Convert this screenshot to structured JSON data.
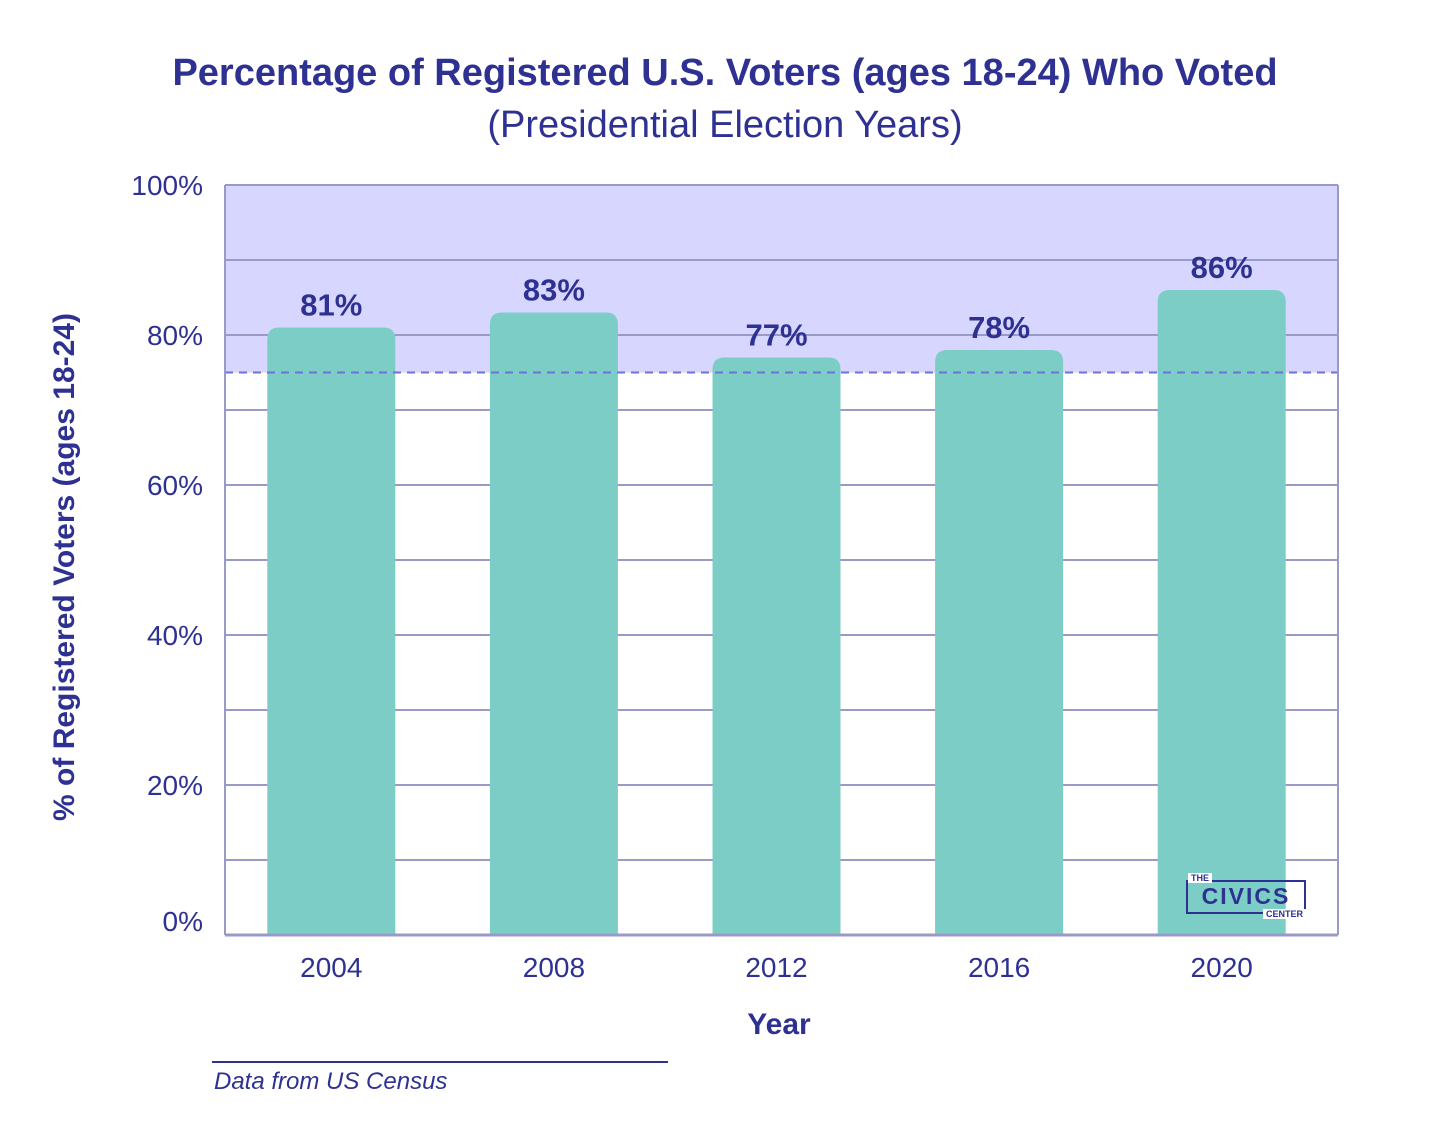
{
  "chart_data": {
    "type": "bar",
    "title": "Percentage of Registered U.S. Voters (ages 18-24) Who Voted",
    "subtitle": "(Presidential Election Years)",
    "xlabel": "Year",
    "ylabel": "% of Registered Voters (ages 18-24)",
    "categories": [
      "2004",
      "2008",
      "2012",
      "2016",
      "2020"
    ],
    "values": [
      81,
      83,
      77,
      78,
      86
    ],
    "data_labels": [
      "81%",
      "83%",
      "77%",
      "78%",
      "86%"
    ],
    "ylim": [
      0,
      100
    ],
    "yticks": [
      0,
      20,
      40,
      60,
      80,
      100
    ],
    "ytick_labels": [
      "0%",
      "20%",
      "40%",
      "60%",
      "80%",
      "100%"
    ],
    "grid_step": 10,
    "highlight_band": {
      "from": 75,
      "to": 100
    },
    "grid": true,
    "colors": {
      "bar": "#7ccdc5",
      "text": "#2e3192",
      "band": "#d6d6ff",
      "grid": "#9a9ac8",
      "threshold": "#6f70d8"
    }
  },
  "logo": {
    "top": "THE",
    "main": "CIVICS",
    "bottom": "CENTER"
  },
  "source": "Data from US Census"
}
